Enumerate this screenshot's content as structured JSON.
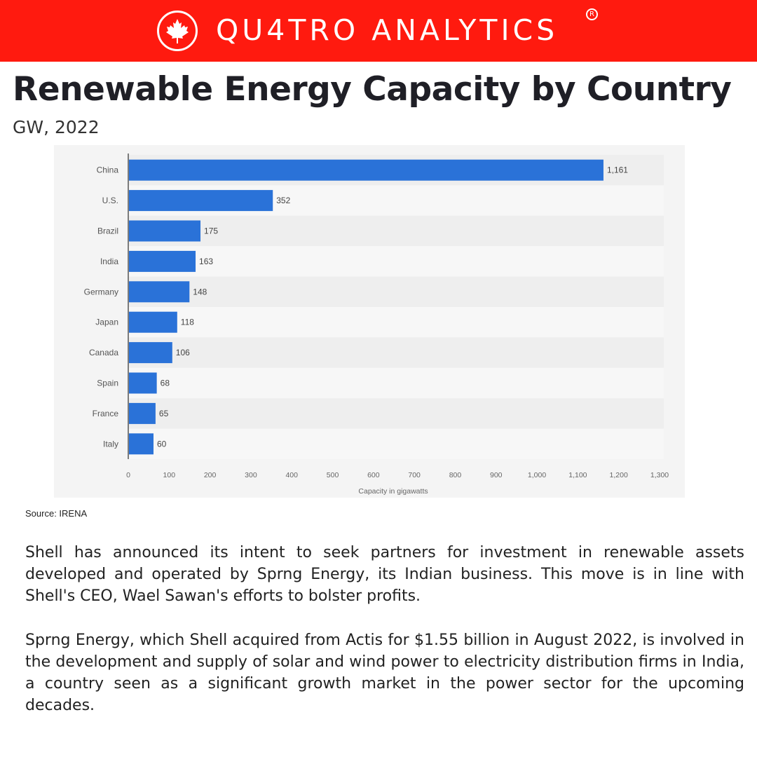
{
  "header": {
    "brand": "QU4TRO ANALYTICS",
    "registered": "R",
    "logo_icon": "maple-leaf-icon",
    "brand_color": "#ff1a0f"
  },
  "title": "Renewable Energy Capacity by Country",
  "subtitle": "GW, 2022",
  "chart_data": {
    "type": "bar",
    "orientation": "horizontal",
    "categories": [
      "China",
      "U.S.",
      "Brazil",
      "India",
      "Germany",
      "Japan",
      "Canada",
      "Spain",
      "France",
      "Italy"
    ],
    "values": [
      1161,
      352,
      175,
      163,
      148,
      118,
      106,
      68,
      65,
      60
    ],
    "value_labels": [
      "1,161",
      "352",
      "175",
      "163",
      "148",
      "118",
      "106",
      "68",
      "65",
      "60"
    ],
    "xlabel": "Capacity in gigawatts",
    "ylabel": "",
    "xlim": [
      0,
      1300
    ],
    "xticks": [
      0,
      100,
      200,
      300,
      400,
      500,
      600,
      700,
      800,
      900,
      1000,
      1100,
      1200,
      1300
    ],
    "xtick_labels": [
      "0",
      "100",
      "200",
      "300",
      "400",
      "500",
      "600",
      "700",
      "800",
      "900",
      "1,000",
      "1,100",
      "1,200",
      "1,300"
    ],
    "bar_color": "#2a72d8",
    "grid": false
  },
  "source": "Source: IRENA",
  "paragraphs": [
    "Shell has announced its intent to seek partners for investment in renewable assets developed and operated by Sprng Energy, its Indian business. This move is in line with Shell's CEO, Wael Sawan's efforts to bolster profits.",
    "Sprng Energy, which Shell acquired from Actis for $1.55 billion in August 2022, is involved in the development and supply of solar and wind power to electricity distribution firms in India, a country seen as a significant growth market in the power sector for the upcoming decades."
  ]
}
